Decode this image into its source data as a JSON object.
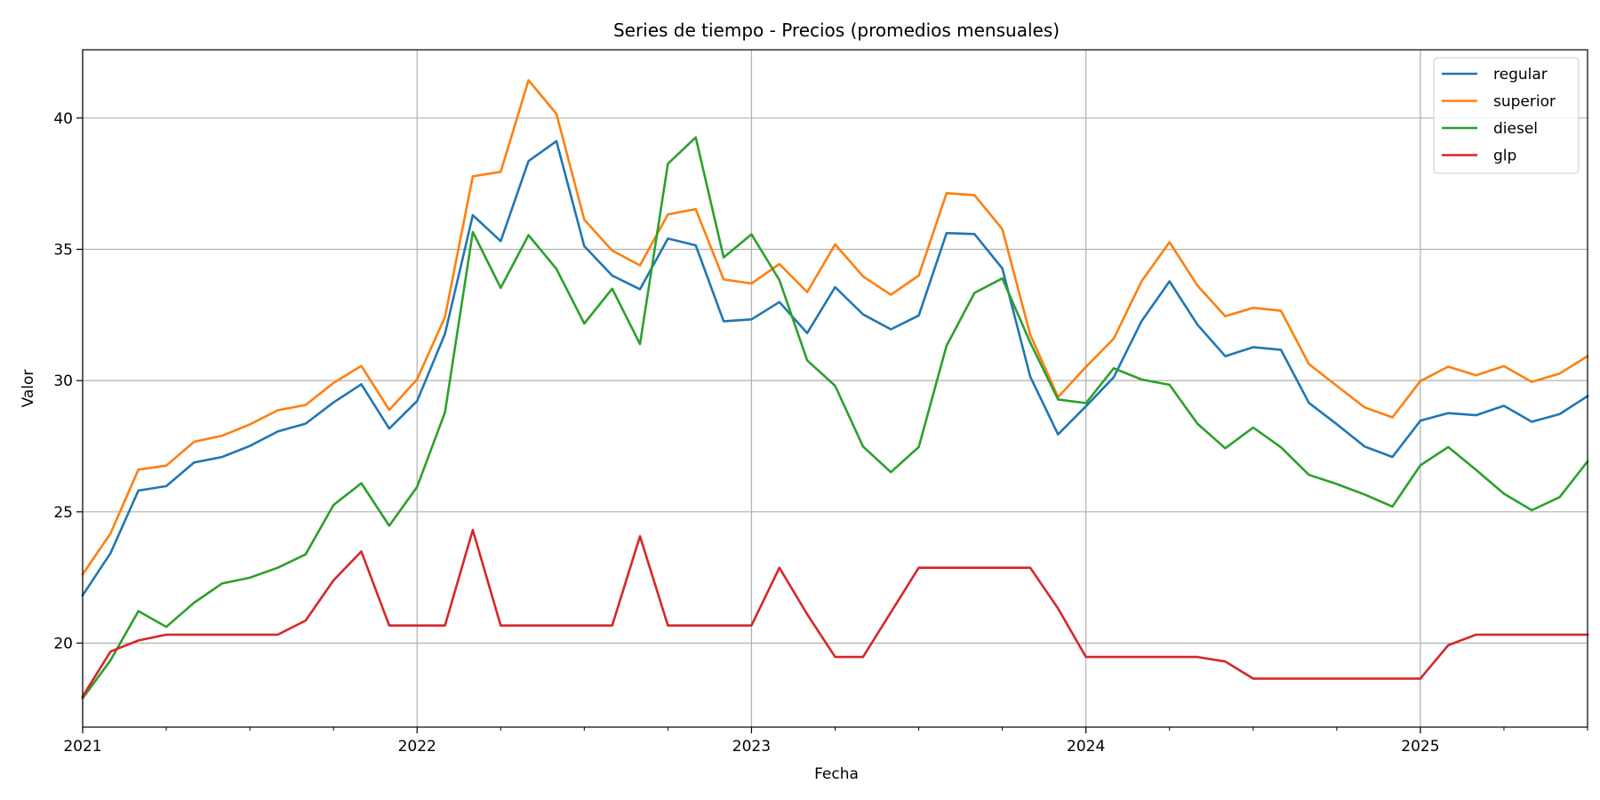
{
  "chart_data": {
    "type": "line",
    "title": "Series de tiempo - Precios (promedios mensuales)",
    "xlabel": "Fecha",
    "ylabel": "Valor",
    "x_start": "2021-01",
    "xlim": [
      "2021-01",
      "2025-07"
    ],
    "ylim": [
      16.8,
      42.6
    ],
    "yticks": [
      20,
      25,
      30,
      35,
      40
    ],
    "xticks_major": [
      {
        "label": "2021",
        "date": "2021-01"
      },
      {
        "label": "2022",
        "date": "2022-01"
      },
      {
        "label": "2023",
        "date": "2023-01"
      },
      {
        "label": "2024",
        "date": "2024-01"
      },
      {
        "label": "2025",
        "date": "2025-01"
      }
    ],
    "grid": true,
    "legend_position": "top-right",
    "series": [
      {
        "name": "regular",
        "color": "#1f77b4",
        "values": [
          21.82,
          23.43,
          25.81,
          25.98,
          26.88,
          27.09,
          27.51,
          28.06,
          28.36,
          29.17,
          29.86,
          28.17,
          29.22,
          31.78,
          36.3,
          35.31,
          38.36,
          39.12,
          35.12,
          34.0,
          33.48,
          35.41,
          35.15,
          32.26,
          32.33,
          32.99,
          31.81,
          33.56,
          32.52,
          31.95,
          32.48,
          35.62,
          35.58,
          34.27,
          30.15,
          27.95,
          29.02,
          30.13,
          32.27,
          33.78,
          32.13,
          30.93,
          31.27,
          31.17,
          29.15,
          28.34,
          27.49,
          27.09,
          28.47,
          28.76,
          28.68,
          29.04,
          28.43,
          28.72,
          29.41
        ]
      },
      {
        "name": "superior",
        "color": "#ff7f0e",
        "values": [
          22.62,
          24.18,
          26.61,
          26.76,
          27.67,
          27.9,
          28.33,
          28.87,
          29.07,
          29.91,
          30.56,
          28.88,
          30.05,
          32.42,
          37.78,
          37.95,
          41.44,
          40.16,
          36.13,
          34.95,
          34.39,
          36.33,
          36.53,
          33.85,
          33.7,
          34.44,
          33.37,
          35.19,
          33.97,
          33.27,
          34.0,
          37.14,
          37.06,
          35.77,
          31.75,
          29.37,
          30.52,
          31.6,
          33.79,
          35.27,
          33.62,
          32.45,
          32.77,
          32.66,
          30.63,
          29.8,
          28.98,
          28.6,
          29.98,
          30.53,
          30.2,
          30.55,
          29.95,
          30.27,
          30.93
        ]
      },
      {
        "name": "diesel",
        "color": "#2ca02c",
        "values": [
          17.9,
          19.35,
          21.22,
          20.62,
          21.54,
          22.27,
          22.49,
          22.87,
          23.38,
          25.26,
          26.09,
          24.47,
          25.95,
          28.79,
          35.66,
          33.53,
          35.54,
          34.25,
          32.17,
          33.5,
          31.39,
          38.26,
          39.26,
          34.69,
          35.57,
          33.83,
          30.77,
          29.8,
          27.49,
          26.51,
          27.47,
          31.33,
          33.34,
          33.89,
          31.45,
          29.28,
          29.14,
          30.47,
          30.04,
          29.84,
          28.36,
          27.42,
          28.21,
          27.46,
          26.41,
          26.06,
          25.66,
          25.2,
          26.77,
          27.47,
          26.6,
          25.69,
          25.06,
          25.56,
          26.92
        ]
      },
      {
        "name": "glp",
        "color": "#d62728",
        "values": [
          17.97,
          19.68,
          20.1,
          20.32,
          20.32,
          20.32,
          20.32,
          20.32,
          20.86,
          22.39,
          23.49,
          20.67,
          20.67,
          20.67,
          24.31,
          20.67,
          20.67,
          20.67,
          20.67,
          20.67,
          24.07,
          20.67,
          20.67,
          20.67,
          20.67,
          22.87,
          21.1,
          19.47,
          19.47,
          21.17,
          22.87,
          22.87,
          22.87,
          22.87,
          22.87,
          21.32,
          19.47,
          19.47,
          19.47,
          19.47,
          19.47,
          19.3,
          18.65,
          18.65,
          18.65,
          18.65,
          18.65,
          18.65,
          18.65,
          19.92,
          20.32,
          20.32,
          20.32,
          20.32,
          20.32
        ]
      }
    ]
  }
}
